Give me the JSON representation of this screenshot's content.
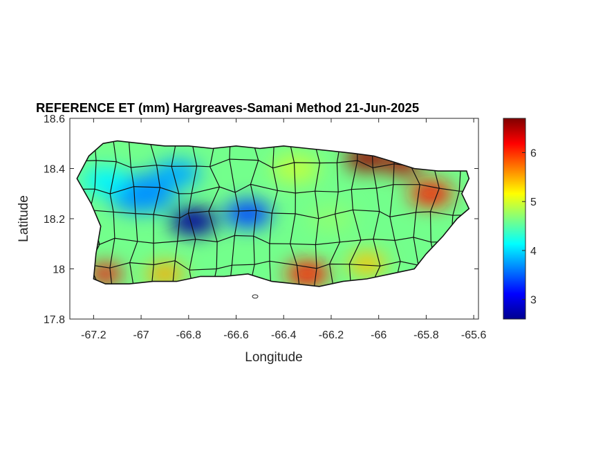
{
  "figure": {
    "title": "REFERENCE ET (mm) Hargreaves-Samani Method  21-Jun-2025",
    "xlabel": "Longitude",
    "ylabel": "Latitude"
  },
  "map": {
    "region": "Puerto Rico",
    "variable": "REFERENCE ET (mm)",
    "colormap": "jet",
    "boundaries": "municipality outlines, black",
    "xlim": [
      -67.3,
      -65.58
    ],
    "ylim": [
      17.8,
      18.6
    ],
    "xticks": [
      {
        "value": -67.2,
        "label": "-67.2"
      },
      {
        "value": -67.0,
        "label": "-67"
      },
      {
        "value": -66.8,
        "label": "-66.8"
      },
      {
        "value": -66.6,
        "label": "-66.6"
      },
      {
        "value": -66.4,
        "label": "-66.4"
      },
      {
        "value": -66.2,
        "label": "-66.2"
      },
      {
        "value": -66.0,
        "label": "-66"
      },
      {
        "value": -65.8,
        "label": "-65.8"
      },
      {
        "value": -65.6,
        "label": "-65.6"
      }
    ],
    "yticks": [
      {
        "value": 17.8,
        "label": "17.8"
      },
      {
        "value": 18.0,
        "label": "18"
      },
      {
        "value": 18.2,
        "label": "18.2"
      },
      {
        "value": 18.4,
        "label": "18.4"
      },
      {
        "value": 18.6,
        "label": "18.6"
      }
    ],
    "coastline": [
      [
        -67.27,
        18.36
      ],
      [
        -67.22,
        18.45
      ],
      [
        -67.16,
        18.5
      ],
      [
        -67.1,
        18.51
      ],
      [
        -67.0,
        18.5
      ],
      [
        -66.9,
        18.49
      ],
      [
        -66.8,
        18.49
      ],
      [
        -66.7,
        18.48
      ],
      [
        -66.6,
        18.49
      ],
      [
        -66.5,
        18.48
      ],
      [
        -66.4,
        18.49
      ],
      [
        -66.3,
        18.48
      ],
      [
        -66.2,
        18.47
      ],
      [
        -66.1,
        18.46
      ],
      [
        -66.02,
        18.45
      ],
      [
        -65.95,
        18.43
      ],
      [
        -65.85,
        18.4
      ],
      [
        -65.75,
        18.39
      ],
      [
        -65.63,
        18.39
      ],
      [
        -65.62,
        18.36
      ],
      [
        -65.65,
        18.3
      ],
      [
        -65.62,
        18.24
      ],
      [
        -65.67,
        18.2
      ],
      [
        -65.73,
        18.13
      ],
      [
        -65.8,
        18.06
      ],
      [
        -65.85,
        18.0
      ],
      [
        -65.95,
        17.98
      ],
      [
        -66.05,
        17.96
      ],
      [
        -66.15,
        17.95
      ],
      [
        -66.25,
        17.93
      ],
      [
        -66.35,
        17.94
      ],
      [
        -66.45,
        17.95
      ],
      [
        -66.55,
        17.98
      ],
      [
        -66.65,
        17.97
      ],
      [
        -66.75,
        17.97
      ],
      [
        -66.85,
        17.95
      ],
      [
        -66.95,
        17.95
      ],
      [
        -67.05,
        17.94
      ],
      [
        -67.15,
        17.94
      ],
      [
        -67.2,
        17.96
      ],
      [
        -67.19,
        18.06
      ],
      [
        -67.17,
        18.17
      ],
      [
        -67.21,
        18.26
      ],
      [
        -67.27,
        18.36
      ]
    ],
    "islets": [
      {
        "lon": -66.52,
        "lat": 17.89,
        "label": ""
      }
    ],
    "value_fields": [
      {
        "lon": -66.78,
        "lat": 18.19,
        "value": 2.7,
        "radius_deg": 0.1
      },
      {
        "lon": -66.55,
        "lat": 18.22,
        "value": 3.4,
        "radius_deg": 0.1
      },
      {
        "lon": -67.0,
        "lat": 18.3,
        "value": 3.7,
        "radius_deg": 0.14
      },
      {
        "lon": -66.85,
        "lat": 18.38,
        "value": 3.8,
        "radius_deg": 0.1
      },
      {
        "lon": -67.15,
        "lat": 18.35,
        "value": 4.1,
        "radius_deg": 0.1
      },
      {
        "lon": -66.35,
        "lat": 18.4,
        "value": 4.9,
        "radius_deg": 0.1
      },
      {
        "lon": -66.2,
        "lat": 18.2,
        "value": 4.7,
        "radius_deg": 0.1
      },
      {
        "lon": -66.05,
        "lat": 18.44,
        "value": 6.6,
        "radius_deg": 0.09
      },
      {
        "lon": -65.9,
        "lat": 18.42,
        "value": 6.5,
        "radius_deg": 0.08
      },
      {
        "lon": -65.78,
        "lat": 18.3,
        "value": 6.1,
        "radius_deg": 0.09
      },
      {
        "lon": -66.3,
        "lat": 17.98,
        "value": 6.1,
        "radius_deg": 0.09
      },
      {
        "lon": -67.15,
        "lat": 17.98,
        "value": 6.2,
        "radius_deg": 0.07
      },
      {
        "lon": -66.9,
        "lat": 17.98,
        "value": 5.5,
        "radius_deg": 0.08
      },
      {
        "lon": -66.05,
        "lat": 18.02,
        "value": 5.4,
        "radius_deg": 0.08
      }
    ]
  },
  "colorbar": {
    "colormap": "jet",
    "range": [
      2.6,
      6.7
    ],
    "ticks": [
      {
        "value": 3,
        "label": "3"
      },
      {
        "value": 4,
        "label": "4"
      },
      {
        "value": 5,
        "label": "5"
      },
      {
        "value": 6,
        "label": "6"
      }
    ]
  }
}
